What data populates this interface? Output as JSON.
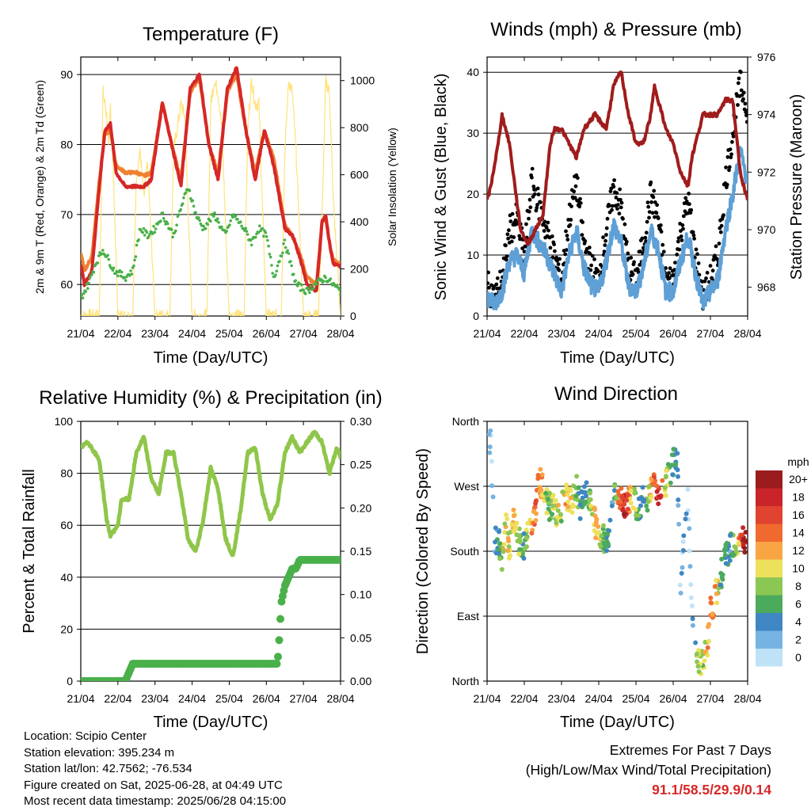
{
  "x_tick_labels": [
    "21/04",
    "22/04",
    "23/04",
    "24/04",
    "25/04",
    "26/04",
    "27/04",
    "28/04"
  ],
  "x_label": "Time (Day/UTC)",
  "colors": {
    "temp_2m": "#d62728",
    "temp_9m": "#f08030",
    "dewpoint": "#49b04a",
    "solar": "#ffe27a",
    "gust": "#000000",
    "wind": "#5ea0d6",
    "pressure": "#a01c1c",
    "rh": "#8fc64a",
    "precip": "#49b04a",
    "extremes": "#d62728"
  },
  "charts": {
    "temperature": {
      "title": "Temperature (F)",
      "ylabel_left": "2m & 9m T (Red, Orange) & 2m Td (Green)",
      "ylabel_right": "Solar Insolation (Yellow)",
      "yticks_left": [
        "60",
        "70",
        "80",
        "90"
      ],
      "yticks_right": [
        "0",
        "200",
        "400",
        "600",
        "800",
        "1000"
      ]
    },
    "winds": {
      "title": "Winds (mph) & Pressure (mb)",
      "ylabel_left": "Sonic Wind & Gust (Blue, Black)",
      "ylabel_right": "Station Pressure (Maroon)",
      "yticks_left": [
        "0",
        "10",
        "20",
        "30",
        "40"
      ],
      "yticks_right": [
        "968",
        "970",
        "972",
        "974",
        "976"
      ]
    },
    "humidity": {
      "title": "Relative Humidity (%) & Precipitation (in)",
      "ylabel_left": "Percent & Total Rainfall",
      "yticks_left": [
        "0",
        "20",
        "40",
        "60",
        "80",
        "100"
      ],
      "yticks_right": [
        "0.00",
        "0.05",
        "0.10",
        "0.15",
        "0.20",
        "0.25",
        "0.30"
      ]
    },
    "direction": {
      "title": "Wind Direction",
      "ylabel_left": "Direction (Colored By Speed)",
      "yticks_left": [
        "North",
        "East",
        "South",
        "West",
        "North"
      ],
      "legend_unit": "mph",
      "legend_labels": [
        "20+",
        "18",
        "16",
        "14",
        "12",
        "10",
        "8",
        "6",
        "4",
        "2",
        "0"
      ],
      "legend_colors": [
        "#9b1c1f",
        "#c8242a",
        "#e04330",
        "#f06a30",
        "#f9a544",
        "#ede05a",
        "#8cc653",
        "#4caa5c",
        "#3f86c2",
        "#75b3e2",
        "#c0e2f6"
      ]
    }
  },
  "chart_data": [
    {
      "type": "line",
      "title": "Temperature (F)",
      "xlabel": "Time (Day/UTC)",
      "ylabel": "2m & 9m T (Red, Orange) & 2m Td (Green)",
      "ylim": [
        55.5,
        92.5
      ],
      "y2label": "Solar Insolation (Yellow)",
      "y2lim": [
        0,
        1100
      ],
      "grid": true,
      "series": [
        {
          "name": "2m T",
          "axis": "left",
          "x": [
            0,
            0.1,
            0.3,
            0.5,
            0.65,
            0.8,
            0.95,
            1.2,
            1.5,
            1.7,
            1.9,
            2.2,
            2.45,
            2.7,
            2.95,
            3.2,
            3.45,
            3.7,
            3.95,
            4.2,
            4.45,
            4.7,
            4.95,
            5.2,
            5.5,
            5.7,
            5.9,
            6.1,
            6.35,
            6.5,
            6.6,
            6.7,
            6.8,
            7.0
          ],
          "values": [
            63,
            60,
            62,
            74,
            82,
            83,
            76,
            74,
            74,
            74,
            75,
            86,
            80,
            74,
            88,
            90,
            80,
            75,
            88,
            91,
            82,
            75,
            82,
            77,
            68,
            67,
            64,
            60,
            59,
            69,
            70,
            66,
            63,
            62.5
          ]
        },
        {
          "name": "9m T",
          "axis": "left",
          "x": [
            0,
            0.1,
            0.3,
            0.5,
            0.65,
            0.8,
            0.95,
            1.2,
            1.5,
            1.7,
            1.9,
            2.2,
            2.45,
            2.7,
            2.95,
            3.2,
            3.45,
            3.7,
            3.95,
            4.2,
            4.45,
            4.7,
            4.95,
            5.2,
            5.5,
            5.7,
            5.9,
            6.1,
            6.35,
            6.5,
            6.6,
            6.7,
            6.8,
            7.0
          ],
          "values": [
            64.5,
            62,
            64,
            75,
            81.5,
            82,
            77,
            76,
            76,
            75.5,
            76,
            86,
            80,
            75,
            87.5,
            89.5,
            80,
            76,
            87.5,
            90,
            82,
            76,
            82,
            78,
            68.5,
            67,
            64.5,
            61,
            60,
            69,
            69.5,
            66,
            63.5,
            63
          ]
        },
        {
          "name": "2m Td",
          "axis": "left",
          "x": [
            0,
            0.2,
            0.4,
            0.6,
            0.9,
            1.2,
            1.4,
            1.6,
            1.8,
            2.0,
            2.2,
            2.5,
            2.7,
            2.9,
            3.1,
            3.3,
            3.6,
            3.9,
            4.1,
            4.4,
            4.6,
            4.8,
            5.0,
            5.2,
            5.5,
            5.8,
            6.1,
            6.3,
            6.6,
            6.8,
            7.0
          ],
          "values": [
            58,
            60,
            63,
            65,
            62,
            61,
            62,
            68,
            67,
            68,
            70,
            67,
            71,
            74,
            70,
            68,
            70,
            67,
            70,
            68,
            66,
            68,
            67,
            61,
            66,
            60,
            59,
            60,
            61,
            60,
            59
          ]
        },
        {
          "name": "Solar",
          "axis": "right",
          "x": [
            0,
            0.5,
            0.55,
            0.6,
            0.7,
            0.75,
            0.8,
            0.9,
            1.0,
            1.4,
            1.5,
            1.6,
            1.7,
            1.8,
            2.0,
            2.4,
            2.5,
            2.6,
            2.7,
            2.8,
            3.0,
            3.4,
            3.5,
            3.6,
            3.7,
            3.8,
            4.0,
            4.4,
            4.5,
            4.6,
            4.7,
            4.8,
            5.0,
            5.4,
            5.5,
            5.6,
            5.7,
            5.8,
            6.0,
            6.4,
            6.5,
            6.6,
            6.7,
            6.8,
            7.0
          ],
          "values": [
            0,
            0,
            500,
            950,
            850,
            700,
            900,
            500,
            0,
            0,
            600,
            700,
            500,
            650,
            0,
            0,
            700,
            800,
            900,
            850,
            0,
            0,
            900,
            1000,
            950,
            800,
            0,
            0,
            800,
            1000,
            900,
            900,
            0,
            0,
            700,
            1000,
            950,
            700,
            0,
            0,
            400,
            1000,
            950,
            500,
            0
          ]
        }
      ]
    },
    {
      "type": "line",
      "title": "Winds (mph) & Pressure (mb)",
      "xlabel": "Time (Day/UTC)",
      "ylabel": "Sonic Wind & Gust (Blue, Black)",
      "ylim": [
        0,
        42.5
      ],
      "y2label": "Station Pressure (Maroon)",
      "y2lim": [
        967,
        976
      ],
      "grid": true,
      "series": [
        {
          "name": "Gust",
          "axis": "left",
          "x": [
            0,
            0.2,
            0.4,
            0.6,
            0.8,
            1.0,
            1.2,
            1.4,
            1.6,
            1.8,
            2.0,
            2.2,
            2.4,
            2.6,
            2.8,
            3.0,
            3.2,
            3.4,
            3.6,
            3.8,
            4.0,
            4.2,
            4.4,
            4.6,
            4.8,
            5.0,
            5.2,
            5.4,
            5.6,
            5.8,
            6.0,
            6.2,
            6.4,
            6.6,
            6.8,
            7.0
          ],
          "values": [
            5,
            3,
            6,
            14,
            16,
            10,
            22,
            18,
            14,
            10,
            6,
            16,
            22,
            12,
            8,
            6,
            14,
            21,
            18,
            8,
            6,
            12,
            20,
            16,
            6,
            6,
            14,
            19,
            10,
            3,
            6,
            10,
            22,
            30,
            38,
            34
          ]
        },
        {
          "name": "Wind",
          "axis": "left",
          "x": [
            0,
            0.2,
            0.4,
            0.6,
            0.8,
            1.0,
            1.2,
            1.4,
            1.6,
            1.8,
            2.0,
            2.2,
            2.4,
            2.6,
            2.8,
            3.0,
            3.2,
            3.4,
            3.6,
            3.8,
            4.0,
            4.2,
            4.4,
            4.6,
            4.8,
            5.0,
            5.2,
            5.4,
            5.6,
            5.8,
            6.0,
            6.2,
            6.4,
            6.6,
            6.8,
            7.0
          ],
          "values": [
            3,
            2,
            4,
            9,
            10,
            7,
            14,
            12,
            10,
            7,
            4,
            10,
            14,
            8,
            5,
            4,
            9,
            15,
            12,
            5,
            4,
            8,
            14,
            11,
            4,
            4,
            9,
            13,
            7,
            2,
            4,
            6,
            14,
            20,
            27,
            22
          ]
        },
        {
          "name": "Pressure",
          "axis": "right",
          "x": [
            0,
            0.1,
            0.3,
            0.4,
            0.6,
            0.8,
            0.9,
            1.1,
            1.3,
            1.5,
            1.7,
            1.8,
            2.0,
            2.2,
            2.4,
            2.6,
            2.9,
            3.2,
            3.4,
            3.6,
            3.8,
            4.0,
            4.2,
            4.4,
            4.5,
            4.6,
            4.8,
            5.0,
            5.2,
            5.4,
            5.5,
            5.6,
            5.8,
            6.0,
            6.2,
            6.4,
            6.6,
            6.8,
            6.9,
            7.0
          ],
          "values": [
            971,
            971.5,
            973,
            974,
            973,
            971,
            970,
            969.5,
            970,
            970.5,
            973,
            973.5,
            973.5,
            973,
            972.5,
            973.5,
            974,
            973.5,
            975,
            975.5,
            974,
            973,
            973,
            974,
            975,
            974.5,
            973.5,
            973,
            972,
            971.5,
            972.5,
            973,
            974,
            974,
            974,
            974.5,
            974.5,
            972,
            971.5,
            971
          ]
        }
      ]
    },
    {
      "type": "line",
      "title": "Relative Humidity (%) & Precipitation (in)",
      "xlabel": "Time (Day/UTC)",
      "ylabel": "Percent & Total Rainfall",
      "ylim": [
        0,
        100
      ],
      "y2lim": [
        0,
        0.3
      ],
      "grid": true,
      "series": [
        {
          "name": "RH",
          "axis": "left",
          "x": [
            0,
            0.2,
            0.5,
            0.7,
            0.8,
            1.0,
            1.1,
            1.3,
            1.5,
            1.7,
            1.9,
            2.1,
            2.3,
            2.5,
            2.7,
            2.9,
            3.1,
            3.3,
            3.5,
            3.7,
            3.9,
            4.1,
            4.3,
            4.5,
            4.7,
            4.9,
            5.1,
            5.3,
            5.5,
            5.7,
            5.9,
            6.1,
            6.3,
            6.5,
            6.7,
            6.9,
            7.0
          ],
          "values": [
            90,
            92,
            85,
            62,
            56,
            60,
            70,
            70,
            88,
            94,
            78,
            72,
            88,
            88,
            72,
            54,
            50,
            62,
            82,
            74,
            55,
            48,
            65,
            88,
            90,
            72,
            62,
            68,
            88,
            94,
            88,
            92,
            96,
            92,
            80,
            90,
            86
          ]
        },
        {
          "name": "Precip",
          "axis": "right",
          "x": [
            0,
            1.2,
            1.3,
            1.4,
            5.2,
            5.3,
            5.35,
            5.4,
            5.5,
            5.6,
            5.7,
            5.8,
            5.9,
            6.1,
            6.3,
            6.5,
            7.0
          ],
          "values": [
            0,
            0,
            0.01,
            0.02,
            0.02,
            0.02,
            0.05,
            0.09,
            0.11,
            0.12,
            0.13,
            0.13,
            0.14,
            0.14,
            0.14,
            0.14,
            0.14
          ]
        }
      ]
    },
    {
      "type": "scatter",
      "title": "Wind Direction",
      "xlabel": "Time (Day/UTC)",
      "ylabel": "Direction (Colored By Speed)",
      "ylim": [
        0,
        360
      ],
      "colorbar": {
        "label": "mph",
        "min": 0,
        "max": 20
      },
      "series": [
        {
          "name": "Direction",
          "x": [
            0.1,
            0.15,
            0.2,
            0.3,
            0.4,
            0.5,
            0.6,
            0.7,
            0.8,
            0.9,
            1.0,
            1.1,
            1.2,
            1.3,
            1.4,
            1.5,
            1.6,
            1.7,
            1.8,
            1.9,
            2.0,
            2.1,
            2.2,
            2.3,
            2.4,
            2.5,
            2.6,
            2.7,
            2.8,
            2.9,
            3.0,
            3.1,
            3.2,
            3.3,
            3.4,
            3.5,
            3.6,
            3.7,
            3.8,
            3.9,
            4.0,
            4.1,
            4.2,
            4.3,
            4.4,
            4.5,
            4.6,
            4.7,
            4.8,
            4.9,
            5.0,
            5.1,
            5.2,
            5.3,
            5.4,
            5.5,
            5.6,
            5.7,
            5.8,
            5.9,
            6.0,
            6.1,
            6.2,
            6.3,
            6.4,
            6.5,
            6.6,
            6.7,
            6.8,
            6.9
          ],
          "values": [
            330,
            260,
            190,
            200,
            170,
            220,
            180,
            230,
            200,
            190,
            185,
            215,
            200,
            235,
            280,
            270,
            250,
            240,
            245,
            230,
            240,
            260,
            250,
            250,
            270,
            240,
            255,
            265,
            250,
            220,
            195,
            210,
            185,
            215,
            255,
            270,
            250,
            240,
            255,
            250,
            245,
            235,
            255,
            245,
            265,
            270,
            260,
            280,
            275,
            285,
            300,
            320,
            130,
            200,
            250,
            110,
            60,
            20,
            35,
            45,
            95,
            110,
            130,
            150,
            170,
            185,
            190,
            190,
            195,
            195
          ],
          "speed": [
            1,
            2,
            3,
            5,
            8,
            11,
            9,
            12,
            10,
            7,
            6,
            10,
            12,
            14,
            13,
            11,
            8,
            6,
            9,
            10,
            8,
            11,
            12,
            9,
            7,
            5,
            4,
            6,
            9,
            12,
            10,
            8,
            6,
            4,
            3,
            12,
            16,
            18,
            14,
            9,
            8,
            6,
            4,
            7,
            11,
            15,
            18,
            13,
            9,
            6,
            5,
            4,
            1,
            2,
            1,
            1,
            6,
            10,
            8,
            12,
            13,
            14,
            10,
            5,
            5,
            4,
            6,
            8,
            14,
            20
          ]
        }
      ]
    }
  ],
  "info": {
    "location": "Location: Scipio Center",
    "elevation": "Station elevation: 395.234 m",
    "latlon": "Station lat/lon: 42.7562; -76.534",
    "created": "Figure created on Sat, 2025-06-28, at 04:49 UTC",
    "recent": "Most recent data timestamp: 2025/06/28 04:15:00"
  },
  "extremes": {
    "title": "Extremes For Past 7 Days",
    "subtitle": "(High/Low/Max Wind/Total Precipitation)",
    "values": "91.1/58.5/29.9/0.14"
  }
}
